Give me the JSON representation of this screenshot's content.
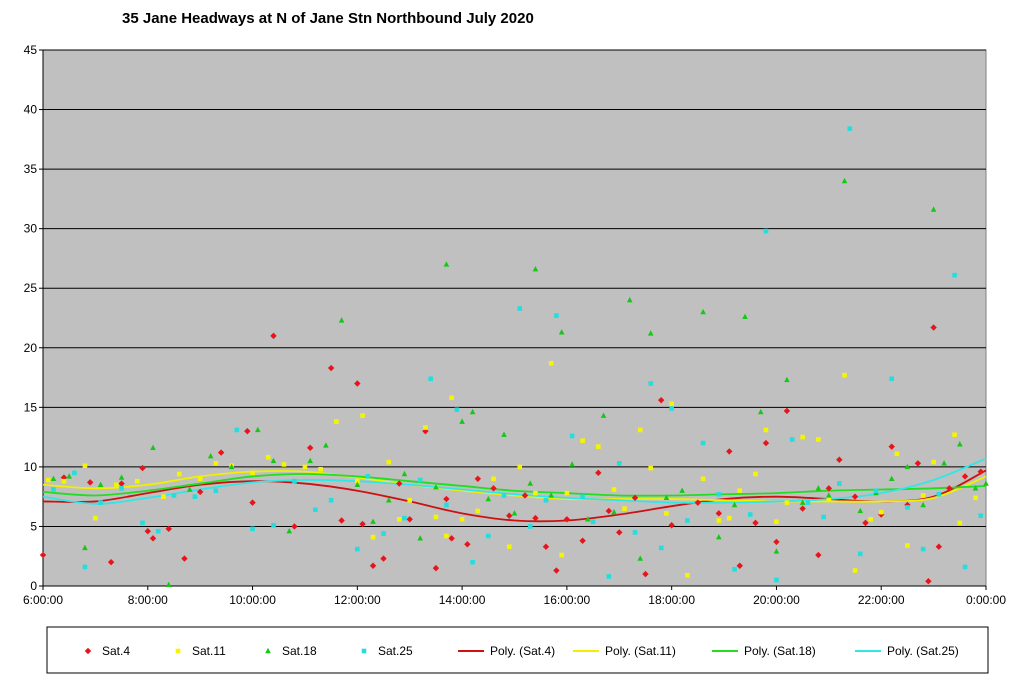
{
  "chart_data": {
    "type": "scatter",
    "title": "35 Jane Headways  at N of Jane Stn Northbound  July 2020",
    "xlabel": "",
    "ylabel": "",
    "x_ticks": [
      "6:00:00",
      "8:00:00",
      "10:00:00",
      "12:00:00",
      "14:00:00",
      "16:00:00",
      "18:00:00",
      "20:00:00",
      "22:00:00",
      "0:00:00"
    ],
    "xlim_hours": [
      6,
      24
    ],
    "ylim": [
      0,
      45
    ],
    "y_ticks": [
      0,
      5,
      10,
      15,
      20,
      25,
      30,
      35,
      40,
      45
    ],
    "grid": "horizontal",
    "legend_position": "bottom",
    "plot_background": "#c0c0c0",
    "series": [
      {
        "name": "Sat.4",
        "color": "#e8141b",
        "marker": "diamond",
        "points": [
          [
            6.0,
            2.6
          ],
          [
            6.4,
            9.1
          ],
          [
            6.9,
            8.7
          ],
          [
            7.3,
            2.0
          ],
          [
            7.5,
            8.6
          ],
          [
            7.9,
            9.9
          ],
          [
            8.0,
            4.6
          ],
          [
            8.1,
            4.0
          ],
          [
            8.4,
            4.8
          ],
          [
            8.7,
            2.3
          ],
          [
            9.0,
            7.9
          ],
          [
            9.4,
            11.2
          ],
          [
            9.9,
            13.0
          ],
          [
            10.0,
            7.0
          ],
          [
            10.4,
            21.0
          ],
          [
            10.8,
            5.0
          ],
          [
            11.1,
            11.6
          ],
          [
            11.5,
            18.3
          ],
          [
            11.7,
            5.5
          ],
          [
            12.0,
            17.0
          ],
          [
            12.1,
            5.2
          ],
          [
            12.3,
            1.7
          ],
          [
            12.5,
            2.3
          ],
          [
            12.8,
            8.6
          ],
          [
            13.0,
            5.6
          ],
          [
            13.3,
            13.0
          ],
          [
            13.5,
            1.5
          ],
          [
            13.7,
            7.3
          ],
          [
            13.8,
            4.0
          ],
          [
            14.1,
            3.5
          ],
          [
            14.3,
            9.0
          ],
          [
            14.6,
            8.2
          ],
          [
            14.9,
            5.9
          ],
          [
            15.2,
            7.6
          ],
          [
            15.4,
            5.7
          ],
          [
            15.6,
            3.3
          ],
          [
            15.8,
            1.3
          ],
          [
            16.0,
            5.6
          ],
          [
            16.3,
            3.8
          ],
          [
            16.6,
            9.5
          ],
          [
            16.8,
            6.3
          ],
          [
            17.0,
            4.5
          ],
          [
            17.3,
            7.4
          ],
          [
            17.5,
            1.0
          ],
          [
            17.8,
            15.6
          ],
          [
            18.0,
            5.1
          ],
          [
            18.5,
            7.0
          ],
          [
            18.9,
            6.1
          ],
          [
            19.1,
            11.3
          ],
          [
            19.3,
            1.7
          ],
          [
            19.6,
            5.3
          ],
          [
            19.8,
            12.0
          ],
          [
            20.0,
            3.7
          ],
          [
            20.2,
            14.7
          ],
          [
            20.5,
            6.5
          ],
          [
            20.8,
            2.6
          ],
          [
            21.0,
            8.2
          ],
          [
            21.2,
            10.6
          ],
          [
            21.5,
            7.5
          ],
          [
            21.7,
            5.3
          ],
          [
            22.0,
            6.0
          ],
          [
            22.2,
            11.7
          ],
          [
            22.5,
            6.8
          ],
          [
            22.7,
            10.3
          ],
          [
            22.9,
            0.4
          ],
          [
            23.0,
            21.7
          ],
          [
            23.1,
            3.3
          ],
          [
            23.3,
            8.2
          ],
          [
            23.6,
            9.2
          ],
          [
            23.9,
            9.6
          ]
        ]
      },
      {
        "name": "Sat.11",
        "color": "#f5f500",
        "marker": "square",
        "points": [
          [
            6.1,
            8.9
          ],
          [
            6.4,
            8.8
          ],
          [
            6.8,
            10.1
          ],
          [
            7.0,
            5.7
          ],
          [
            7.4,
            8.5
          ],
          [
            7.8,
            8.8
          ],
          [
            8.3,
            7.5
          ],
          [
            8.6,
            9.4
          ],
          [
            9.0,
            9.0
          ],
          [
            9.3,
            10.3
          ],
          [
            9.6,
            10.1
          ],
          [
            10.0,
            9.5
          ],
          [
            10.3,
            10.8
          ],
          [
            10.6,
            10.2
          ],
          [
            11.0,
            10.0
          ],
          [
            11.3,
            9.8
          ],
          [
            11.6,
            13.8
          ],
          [
            12.0,
            8.8
          ],
          [
            12.1,
            14.3
          ],
          [
            12.3,
            4.1
          ],
          [
            12.6,
            10.4
          ],
          [
            12.8,
            5.6
          ],
          [
            13.0,
            7.2
          ],
          [
            13.3,
            13.3
          ],
          [
            13.5,
            5.8
          ],
          [
            13.7,
            4.2
          ],
          [
            13.8,
            15.8
          ],
          [
            14.0,
            5.6
          ],
          [
            14.3,
            6.3
          ],
          [
            14.6,
            9.0
          ],
          [
            14.9,
            3.3
          ],
          [
            15.1,
            10.0
          ],
          [
            15.4,
            7.8
          ],
          [
            15.7,
            18.7
          ],
          [
            15.9,
            2.6
          ],
          [
            16.0,
            7.8
          ],
          [
            16.3,
            12.2
          ],
          [
            16.6,
            11.7
          ],
          [
            16.9,
            8.1
          ],
          [
            17.1,
            6.5
          ],
          [
            17.4,
            13.1
          ],
          [
            17.6,
            9.9
          ],
          [
            17.9,
            6.1
          ],
          [
            18.0,
            15.3
          ],
          [
            18.3,
            0.9
          ],
          [
            18.6,
            9.0
          ],
          [
            18.9,
            5.5
          ],
          [
            19.1,
            5.7
          ],
          [
            19.3,
            8.0
          ],
          [
            19.6,
            9.4
          ],
          [
            19.8,
            13.1
          ],
          [
            20.0,
            5.4
          ],
          [
            20.2,
            7.0
          ],
          [
            20.5,
            12.5
          ],
          [
            20.8,
            12.3
          ],
          [
            21.0,
            7.3
          ],
          [
            21.3,
            17.7
          ],
          [
            21.5,
            1.3
          ],
          [
            21.8,
            5.6
          ],
          [
            22.0,
            6.2
          ],
          [
            22.3,
            11.1
          ],
          [
            22.5,
            3.4
          ],
          [
            22.8,
            7.6
          ],
          [
            23.0,
            10.4
          ],
          [
            23.4,
            12.7
          ],
          [
            23.5,
            5.3
          ],
          [
            23.8,
            7.4
          ]
        ]
      },
      {
        "name": "Sat.18",
        "color": "#16c816",
        "marker": "triangle",
        "points": [
          [
            6.2,
            9.0
          ],
          [
            6.5,
            9.2
          ],
          [
            6.8,
            3.2
          ],
          [
            7.1,
            8.5
          ],
          [
            7.5,
            9.1
          ],
          [
            8.1,
            11.6
          ],
          [
            8.4,
            0.1
          ],
          [
            8.8,
            8.1
          ],
          [
            9.2,
            10.9
          ],
          [
            9.6,
            10.0
          ],
          [
            10.1,
            13.1
          ],
          [
            10.4,
            10.5
          ],
          [
            10.7,
            4.6
          ],
          [
            11.1,
            10.5
          ],
          [
            11.4,
            11.8
          ],
          [
            11.7,
            22.3
          ],
          [
            12.0,
            8.5
          ],
          [
            12.3,
            5.4
          ],
          [
            12.6,
            7.2
          ],
          [
            12.9,
            9.4
          ],
          [
            13.2,
            4.0
          ],
          [
            13.5,
            8.3
          ],
          [
            13.7,
            27.0
          ],
          [
            14.0,
            13.8
          ],
          [
            14.2,
            14.6
          ],
          [
            14.5,
            7.3
          ],
          [
            14.8,
            12.7
          ],
          [
            15.0,
            6.1
          ],
          [
            15.3,
            8.6
          ],
          [
            15.4,
            26.6
          ],
          [
            15.7,
            7.6
          ],
          [
            15.9,
            21.3
          ],
          [
            16.1,
            10.2
          ],
          [
            16.4,
            5.6
          ],
          [
            16.7,
            14.3
          ],
          [
            16.9,
            6.2
          ],
          [
            17.2,
            24.0
          ],
          [
            17.4,
            2.3
          ],
          [
            17.6,
            21.2
          ],
          [
            17.9,
            7.4
          ],
          [
            18.2,
            8.0
          ],
          [
            18.6,
            23.0
          ],
          [
            18.9,
            4.1
          ],
          [
            19.2,
            6.8
          ],
          [
            19.4,
            22.6
          ],
          [
            19.7,
            14.6
          ],
          [
            20.0,
            2.9
          ],
          [
            20.2,
            17.3
          ],
          [
            20.5,
            7.0
          ],
          [
            20.8,
            8.2
          ],
          [
            21.0,
            7.6
          ],
          [
            21.3,
            34.0
          ],
          [
            21.6,
            6.3
          ],
          [
            21.9,
            7.8
          ],
          [
            22.2,
            9.0
          ],
          [
            22.5,
            10.0
          ],
          [
            22.8,
            6.8
          ],
          [
            23.0,
            31.6
          ],
          [
            23.2,
            10.3
          ],
          [
            23.5,
            11.9
          ],
          [
            23.8,
            8.2
          ],
          [
            24.0,
            8.6
          ]
        ]
      },
      {
        "name": "Sat.25",
        "color": "#22dede",
        "marker": "square",
        "points": [
          [
            6.2,
            8.1
          ],
          [
            6.6,
            9.5
          ],
          [
            6.8,
            1.6
          ],
          [
            7.1,
            7.0
          ],
          [
            7.5,
            8.2
          ],
          [
            7.9,
            5.3
          ],
          [
            8.2,
            4.6
          ],
          [
            8.5,
            7.6
          ],
          [
            8.9,
            7.5
          ],
          [
            9.3,
            8.0
          ],
          [
            9.7,
            13.1
          ],
          [
            10.0,
            4.8
          ],
          [
            10.4,
            5.1
          ],
          [
            10.8,
            8.8
          ],
          [
            11.2,
            6.4
          ],
          [
            11.5,
            7.2
          ],
          [
            12.0,
            3.1
          ],
          [
            12.2,
            9.2
          ],
          [
            12.5,
            4.4
          ],
          [
            12.9,
            5.7
          ],
          [
            13.2,
            8.9
          ],
          [
            13.4,
            17.4
          ],
          [
            13.7,
            6.8
          ],
          [
            13.9,
            14.8
          ],
          [
            14.2,
            2.0
          ],
          [
            14.5,
            4.2
          ],
          [
            14.8,
            7.6
          ],
          [
            15.1,
            23.3
          ],
          [
            15.3,
            5.0
          ],
          [
            15.6,
            7.2
          ],
          [
            15.8,
            22.7
          ],
          [
            16.1,
            12.6
          ],
          [
            16.3,
            7.5
          ],
          [
            16.5,
            5.4
          ],
          [
            16.8,
            0.8
          ],
          [
            17.0,
            10.3
          ],
          [
            17.3,
            4.5
          ],
          [
            17.6,
            17.0
          ],
          [
            17.8,
            3.2
          ],
          [
            18.0,
            14.9
          ],
          [
            18.3,
            5.5
          ],
          [
            18.6,
            12.0
          ],
          [
            18.9,
            7.7
          ],
          [
            19.2,
            1.4
          ],
          [
            19.5,
            6.0
          ],
          [
            19.8,
            29.8
          ],
          [
            20.0,
            0.5
          ],
          [
            20.3,
            12.3
          ],
          [
            20.6,
            7.0
          ],
          [
            20.9,
            5.8
          ],
          [
            21.2,
            8.6
          ],
          [
            21.4,
            38.4
          ],
          [
            21.6,
            2.7
          ],
          [
            21.9,
            8.0
          ],
          [
            22.2,
            17.4
          ],
          [
            22.5,
            6.6
          ],
          [
            22.8,
            3.1
          ],
          [
            23.1,
            7.7
          ],
          [
            23.4,
            26.1
          ],
          [
            23.6,
            1.6
          ],
          [
            23.9,
            5.9
          ]
        ]
      }
    ],
    "trendlines": [
      {
        "name": "Poly. (Sat.4)",
        "color": "#cc1111",
        "x": [
          6,
          7,
          8,
          9,
          10,
          11,
          12,
          13,
          14,
          15,
          16,
          17,
          18,
          19,
          20,
          21,
          22,
          23,
          24
        ],
        "y": [
          7.1,
          7.1,
          7.8,
          8.5,
          8.8,
          8.6,
          8.0,
          7.1,
          6.1,
          5.5,
          5.5,
          6.0,
          6.7,
          7.3,
          7.5,
          7.3,
          7.1,
          7.5,
          9.7
        ]
      },
      {
        "name": "Poly. (Sat.11)",
        "color": "#f0f000",
        "x": [
          6,
          7,
          8,
          9,
          10,
          11,
          12,
          13,
          14,
          15,
          16,
          17,
          18,
          19,
          20,
          21,
          22,
          23,
          24
        ],
        "y": [
          8.5,
          8.2,
          8.5,
          9.2,
          9.6,
          9.6,
          9.1,
          8.5,
          8.0,
          7.6,
          7.3,
          7.3,
          7.3,
          7.2,
          7.1,
          7.1,
          7.1,
          7.4,
          9.2
        ]
      },
      {
        "name": "Poly. (Sat.18)",
        "color": "#22dd22",
        "x": [
          6,
          7,
          8,
          9,
          10,
          11,
          12,
          13,
          14,
          15,
          16,
          17,
          18,
          19,
          20,
          21,
          22,
          23,
          24
        ],
        "y": [
          7.9,
          7.6,
          8.0,
          8.6,
          9.2,
          9.4,
          9.2,
          8.8,
          8.4,
          8.0,
          7.8,
          7.6,
          7.6,
          7.7,
          7.8,
          8.0,
          8.1,
          8.2,
          8.4
        ]
      },
      {
        "name": "Poly. (Sat.25)",
        "color": "#33e6e6",
        "x": [
          6,
          7,
          8,
          9,
          10,
          11,
          12,
          13,
          14,
          15,
          16,
          17,
          18,
          19,
          20,
          21,
          22,
          23,
          24
        ],
        "y": [
          7.5,
          6.9,
          7.4,
          8.1,
          8.7,
          8.9,
          8.8,
          8.5,
          8.1,
          7.7,
          7.4,
          7.2,
          7.0,
          7.0,
          7.1,
          7.3,
          7.8,
          8.9,
          10.7
        ]
      }
    ]
  }
}
